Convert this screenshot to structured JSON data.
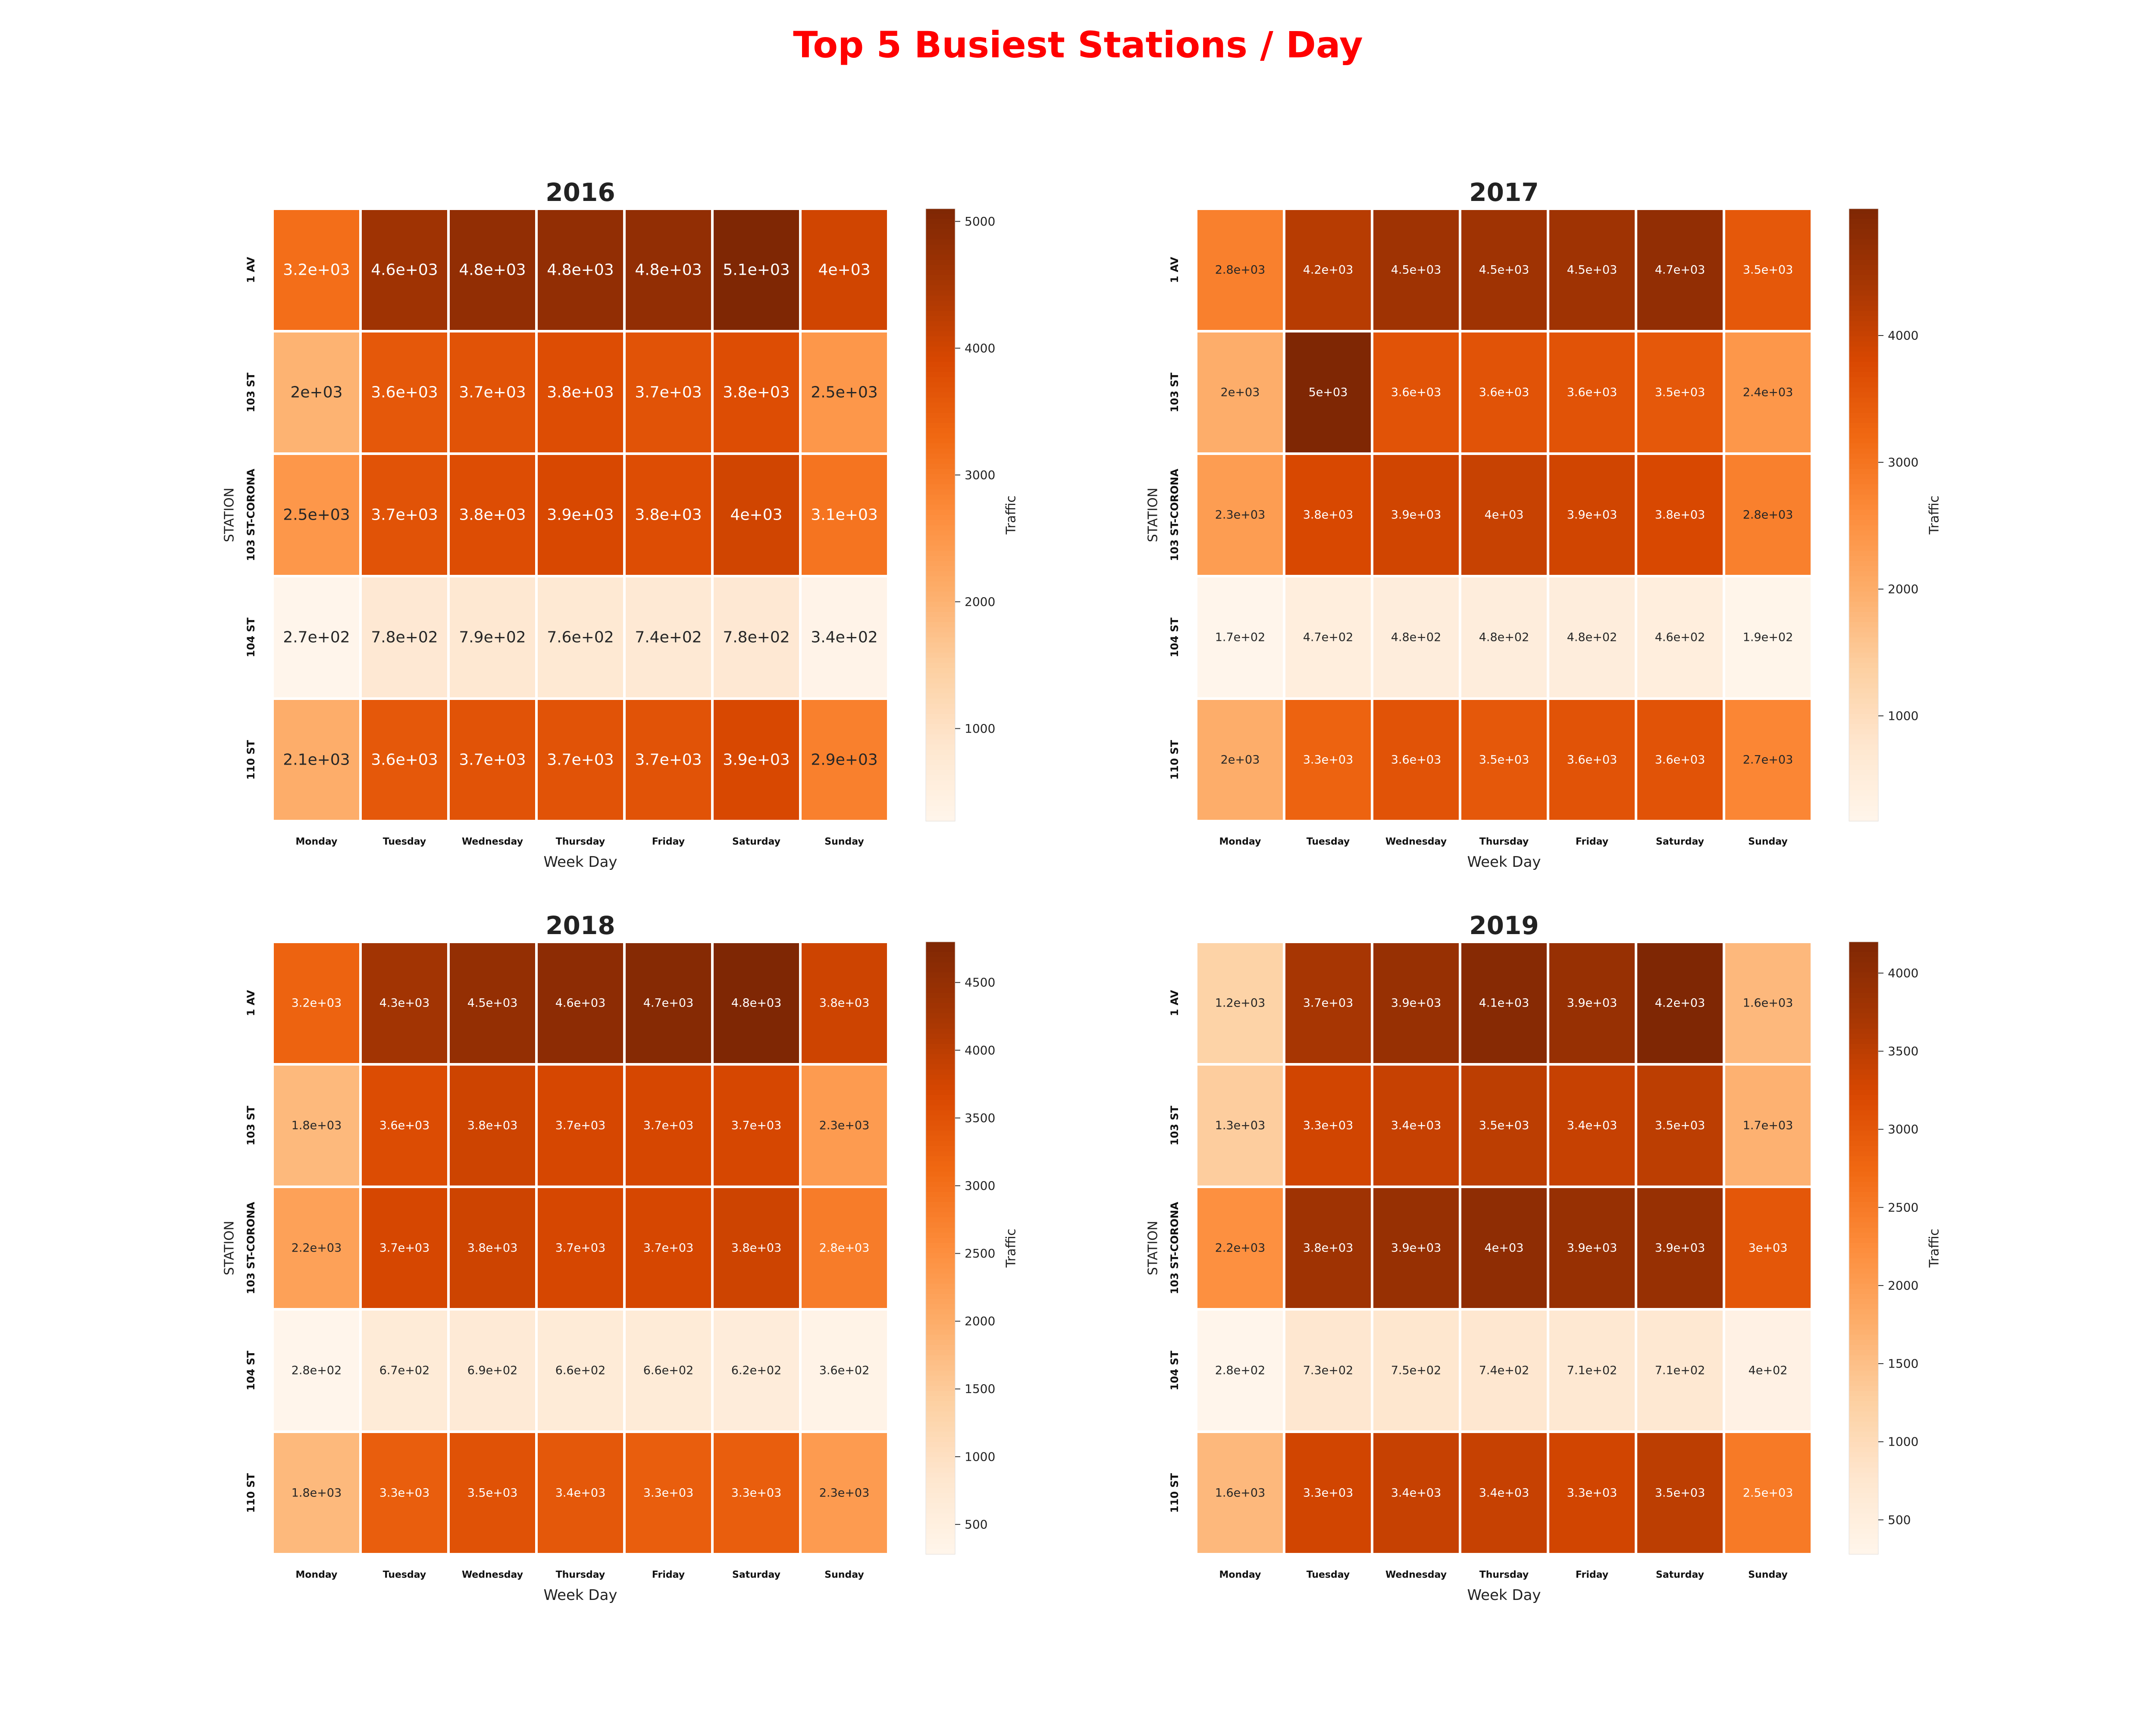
{
  "title": "Top 5 Busiest Stations / Day",
  "chart_data": [
    {
      "type": "heatmap",
      "title": "2016",
      "xlabel": "Week Day",
      "ylabel": "STATION",
      "colorbar_label": "Traffic",
      "colormap": "Oranges",
      "x": [
        "Monday",
        "Tuesday",
        "Wednesday",
        "Thursday",
        "Friday",
        "Saturday",
        "Sunday"
      ],
      "y": [
        "1 AV",
        "103 ST",
        "103 ST-CORONA",
        "104 ST",
        "110 ST"
      ],
      "values": [
        [
          3200,
          4600,
          4800,
          4800,
          4800,
          5100,
          4000
        ],
        [
          2000,
          3600,
          3700,
          3800,
          3700,
          3800,
          2500
        ],
        [
          2500,
          3700,
          3800,
          3900,
          3800,
          4000,
          3100
        ],
        [
          270,
          780,
          790,
          760,
          740,
          780,
          340
        ],
        [
          2100,
          3600,
          3700,
          3700,
          3700,
          3900,
          2900
        ]
      ],
      "annotations": [
        [
          "3.2e+03",
          "4.6e+03",
          "4.8e+03",
          "4.8e+03",
          "4.8e+03",
          "5.1e+03",
          "4e+03"
        ],
        [
          "2e+03",
          "3.6e+03",
          "3.7e+03",
          "3.8e+03",
          "3.7e+03",
          "3.8e+03",
          "2.5e+03"
        ],
        [
          "2.5e+03",
          "3.7e+03",
          "3.8e+03",
          "3.9e+03",
          "3.8e+03",
          "4e+03",
          "3.1e+03"
        ],
        [
          "2.7e+02",
          "7.8e+02",
          "7.9e+02",
          "7.6e+02",
          "7.4e+02",
          "7.8e+02",
          "3.4e+02"
        ],
        [
          "2.1e+03",
          "3.6e+03",
          "3.7e+03",
          "3.7e+03",
          "3.7e+03",
          "3.9e+03",
          "2.9e+03"
        ]
      ],
      "vmin": 270,
      "vmax": 5100,
      "colorbar_ticks": [
        1000,
        2000,
        3000,
        4000,
        5000
      ]
    },
    {
      "type": "heatmap",
      "title": "2017",
      "xlabel": "Week Day",
      "ylabel": "STATION",
      "colorbar_label": "Traffic",
      "colormap": "Oranges",
      "x": [
        "Monday",
        "Tuesday",
        "Wednesday",
        "Thursday",
        "Friday",
        "Saturday",
        "Sunday"
      ],
      "y": [
        "1 AV",
        "103 ST",
        "103 ST-CORONA",
        "104 ST",
        "110 ST"
      ],
      "values": [
        [
          2800,
          4200,
          4500,
          4500,
          4500,
          4700,
          3500
        ],
        [
          2000,
          5000,
          3600,
          3600,
          3600,
          3500,
          2400
        ],
        [
          2300,
          3800,
          3900,
          4000,
          3900,
          3800,
          2800
        ],
        [
          170,
          470,
          480,
          480,
          480,
          460,
          190
        ],
        [
          2000,
          3300,
          3600,
          3500,
          3600,
          3600,
          2700
        ]
      ],
      "annotations": [
        [
          "2.8e+03",
          "4.2e+03",
          "4.5e+03",
          "4.5e+03",
          "4.5e+03",
          "4.7e+03",
          "3.5e+03"
        ],
        [
          "2e+03",
          "5e+03",
          "3.6e+03",
          "3.6e+03",
          "3.6e+03",
          "3.5e+03",
          "2.4e+03"
        ],
        [
          "2.3e+03",
          "3.8e+03",
          "3.9e+03",
          "4e+03",
          "3.9e+03",
          "3.8e+03",
          "2.8e+03"
        ],
        [
          "1.7e+02",
          "4.7e+02",
          "4.8e+02",
          "4.8e+02",
          "4.8e+02",
          "4.6e+02",
          "1.9e+02"
        ],
        [
          "2e+03",
          "3.3e+03",
          "3.6e+03",
          "3.5e+03",
          "3.6e+03",
          "3.6e+03",
          "2.7e+03"
        ]
      ],
      "vmin": 170,
      "vmax": 5000,
      "colorbar_ticks": [
        1000,
        2000,
        3000,
        4000
      ]
    },
    {
      "type": "heatmap",
      "title": "2018",
      "xlabel": "Week Day",
      "ylabel": "STATION",
      "colorbar_label": "Traffic",
      "colormap": "Oranges",
      "x": [
        "Monday",
        "Tuesday",
        "Wednesday",
        "Thursday",
        "Friday",
        "Saturday",
        "Sunday"
      ],
      "y": [
        "1 AV",
        "103 ST",
        "103 ST-CORONA",
        "104 ST",
        "110 ST"
      ],
      "values": [
        [
          3200,
          4300,
          4500,
          4600,
          4700,
          4800,
          3800
        ],
        [
          1800,
          3600,
          3800,
          3700,
          3700,
          3700,
          2300
        ],
        [
          2200,
          3700,
          3800,
          3700,
          3700,
          3800,
          2800
        ],
        [
          280,
          670,
          690,
          660,
          660,
          620,
          360
        ],
        [
          1800,
          3300,
          3500,
          3400,
          3300,
          3300,
          2300
        ]
      ],
      "annotations": [
        [
          "3.2e+03",
          "4.3e+03",
          "4.5e+03",
          "4.6e+03",
          "4.7e+03",
          "4.8e+03",
          "3.8e+03"
        ],
        [
          "1.8e+03",
          "3.6e+03",
          "3.8e+03",
          "3.7e+03",
          "3.7e+03",
          "3.7e+03",
          "2.3e+03"
        ],
        [
          "2.2e+03",
          "3.7e+03",
          "3.8e+03",
          "3.7e+03",
          "3.7e+03",
          "3.8e+03",
          "2.8e+03"
        ],
        [
          "2.8e+02",
          "6.7e+02",
          "6.9e+02",
          "6.6e+02",
          "6.6e+02",
          "6.2e+02",
          "3.6e+02"
        ],
        [
          "1.8e+03",
          "3.3e+03",
          "3.5e+03",
          "3.4e+03",
          "3.3e+03",
          "3.3e+03",
          "2.3e+03"
        ]
      ],
      "vmin": 280,
      "vmax": 4800,
      "colorbar_ticks": [
        500,
        1000,
        1500,
        2000,
        2500,
        3000,
        3500,
        4000,
        4500
      ]
    },
    {
      "type": "heatmap",
      "title": "2019",
      "xlabel": "Week Day",
      "ylabel": "STATION",
      "colorbar_label": "Traffic",
      "colormap": "Oranges",
      "x": [
        "Monday",
        "Tuesday",
        "Wednesday",
        "Thursday",
        "Friday",
        "Saturday",
        "Sunday"
      ],
      "y": [
        "1 AV",
        "103 ST",
        "103 ST-CORONA",
        "104 ST",
        "110 ST"
      ],
      "values": [
        [
          1200,
          3700,
          3900,
          4100,
          3900,
          4200,
          1600
        ],
        [
          1300,
          3300,
          3400,
          3500,
          3400,
          3500,
          1700
        ],
        [
          2200,
          3800,
          3900,
          4000,
          3900,
          3900,
          3000
        ],
        [
          280,
          730,
          750,
          740,
          710,
          710,
          400
        ],
        [
          1600,
          3300,
          3400,
          3400,
          3300,
          3500,
          2500
        ]
      ],
      "annotations": [
        [
          "1.2e+03",
          "3.7e+03",
          "3.9e+03",
          "4.1e+03",
          "3.9e+03",
          "4.2e+03",
          "1.6e+03"
        ],
        [
          "1.3e+03",
          "3.3e+03",
          "3.4e+03",
          "3.5e+03",
          "3.4e+03",
          "3.5e+03",
          "1.7e+03"
        ],
        [
          "2.2e+03",
          "3.8e+03",
          "3.9e+03",
          "4e+03",
          "3.9e+03",
          "3.9e+03",
          "3e+03"
        ],
        [
          "2.8e+02",
          "7.3e+02",
          "7.5e+02",
          "7.4e+02",
          "7.1e+02",
          "7.1e+02",
          "4e+02"
        ],
        [
          "1.6e+03",
          "3.3e+03",
          "3.4e+03",
          "3.4e+03",
          "3.3e+03",
          "3.5e+03",
          "2.5e+03"
        ]
      ],
      "vmin": 280,
      "vmax": 4200,
      "colorbar_ticks": [
        500,
        1000,
        1500,
        2000,
        2500,
        3000,
        3500,
        4000
      ]
    }
  ]
}
